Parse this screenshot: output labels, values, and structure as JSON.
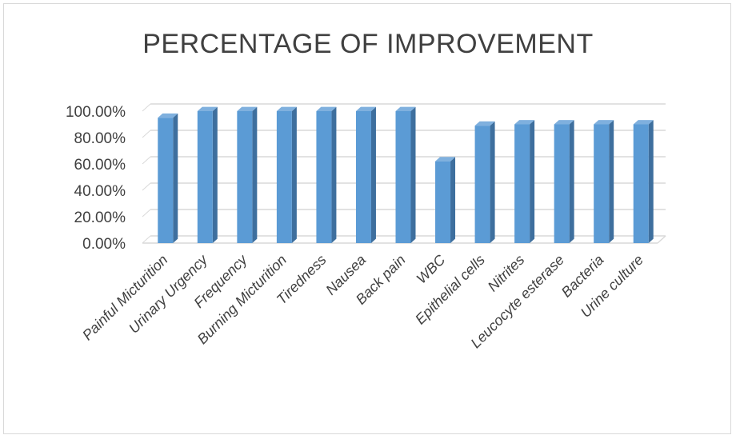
{
  "chart_data": {
    "type": "bar",
    "title": "PERCENTAGE OF IMPROVEMENT",
    "xlabel": "",
    "ylabel": "",
    "categories": [
      "Painful Micturition",
      "Urinary Urgency",
      "Frequency",
      "Burning Micturition",
      "Tiredness",
      "Nausea",
      "Back pain",
      "WBC",
      "Epithelial cells",
      "Nitrites",
      "Leucocyte esterase",
      "Bacteria",
      "Urine culture"
    ],
    "values": [
      95,
      100,
      100,
      100,
      100,
      100,
      100,
      62,
      89,
      90,
      90,
      90,
      90
    ],
    "ylim": [
      0,
      100
    ],
    "yticks": [
      "0.00%",
      "20.00%",
      "40.00%",
      "60.00%",
      "80.00%",
      "100.00%"
    ],
    "grid": true,
    "legend": "none",
    "colors": {
      "bar_front": "#5b9bd5",
      "bar_side": "#3e6f9e",
      "bar_top": "#7fb0de",
      "grid": "#d9d9d9",
      "text": "#404040"
    }
  }
}
